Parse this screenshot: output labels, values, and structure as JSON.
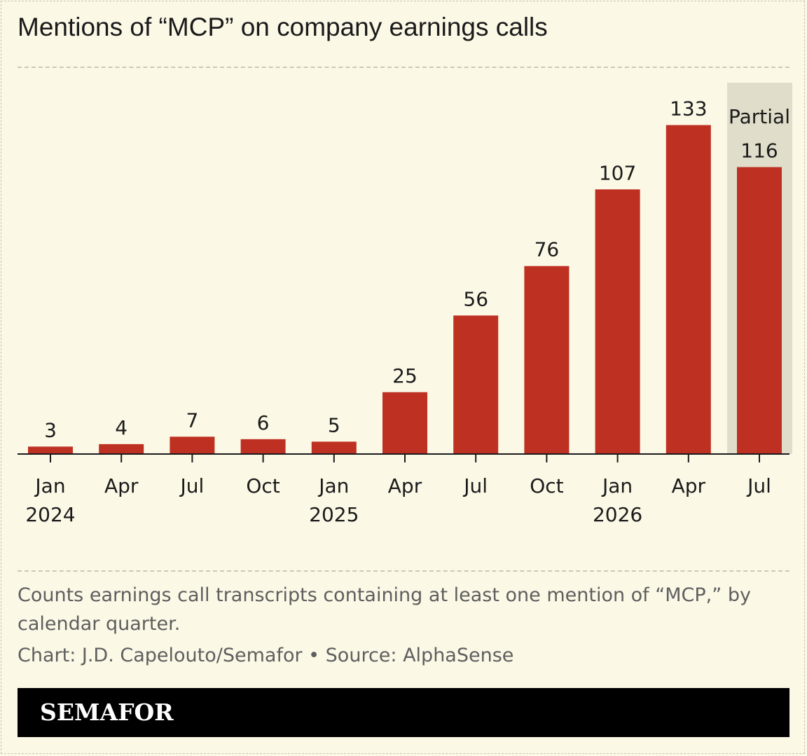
{
  "title": "Mentions of “MCP” on company earnings calls",
  "note": "Counts earnings call transcripts containing at least one mention of “MCP,” by calendar quarter.",
  "credit": "Chart: J.D. Capelouto/Semafor • Source: AlphaSense",
  "brand": "SEMAFOR",
  "colors": {
    "background": "#fbf8e6",
    "bar": "#be3122",
    "partial_highlight": "#e0ddcb",
    "axis": "#1a1a1a"
  },
  "chart_data": {
    "type": "bar",
    "categories": [
      "Jan 2024",
      "Apr",
      "Jul",
      "Oct",
      "Jan 2025",
      "Apr",
      "Jul",
      "Oct",
      "Jan 2026",
      "Apr",
      "Jul"
    ],
    "tick_labels": [
      [
        "Jan",
        "2024"
      ],
      [
        "Apr"
      ],
      [
        "Jul"
      ],
      [
        "Oct"
      ],
      [
        "Jan",
        "2025"
      ],
      [
        "Apr"
      ],
      [
        "Jul"
      ],
      [
        "Oct"
      ],
      [
        "Jan",
        "2026"
      ],
      [
        "Apr"
      ],
      [
        "Jul"
      ]
    ],
    "values": [
      3,
      4,
      7,
      6,
      5,
      25,
      56,
      76,
      107,
      133,
      116
    ],
    "data_labels": [
      "3",
      "4",
      "7",
      "6",
      "5",
      "25",
      "56",
      "76",
      "107",
      "133",
      "116"
    ],
    "partial_index": 10,
    "partial_label": "Partial",
    "ylim": [
      0,
      145
    ],
    "grid": false,
    "legend": "none"
  }
}
